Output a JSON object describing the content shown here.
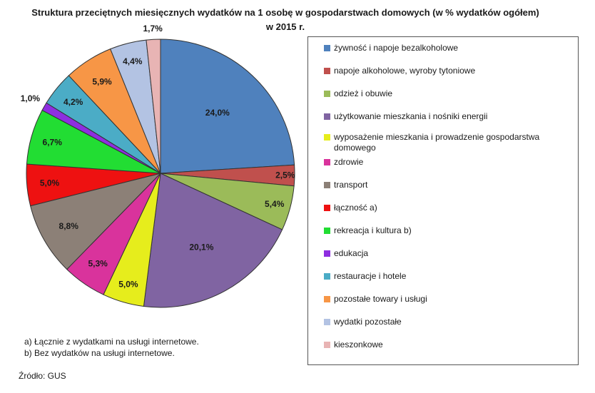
{
  "chart_data": {
    "type": "pie",
    "title": "Struktura przeciętnych miesięcznych wydatków na 1 osobę w gospodarstwach domowych (w % wydatków ogółem) w 2015 r.",
    "start": "12 o'clock, clockwise",
    "slices": [
      {
        "label": "żywność i napoje bezalkoholowe",
        "value": 24.0,
        "display": "24,0%",
        "color": "#4f81bd"
      },
      {
        "label": "napoje alkoholowe, wyroby tytoniowe",
        "value": 2.5,
        "display": "2,5%",
        "color": "#c0504d"
      },
      {
        "label": "odzież i obuwie",
        "value": 5.4,
        "display": "5,4%",
        "color": "#9bbb59"
      },
      {
        "label": "użytkowanie mieszkania i nośniki energii",
        "value": 20.1,
        "display": "20,1%",
        "color": "#8064a2"
      },
      {
        "label": "wyposażenie mieszkania i prowadzenie gospodarstwa domowego",
        "value": 5.0,
        "display": "5,0%",
        "color": "#e6ed1c"
      },
      {
        "label": "zdrowie",
        "value": 5.3,
        "display": "5,3%",
        "color": "#d9339c"
      },
      {
        "label": "transport",
        "value": 8.8,
        "display": "8,8%",
        "color": "#8c8077"
      },
      {
        "label": "łączność a)",
        "value": 5.0,
        "display": "5,0%",
        "color": "#ee1111"
      },
      {
        "label": "rekreacja i kultura b)",
        "value": 6.7,
        "display": "6,7%",
        "color": "#22dd33"
      },
      {
        "label": "edukacja",
        "value": 1.0,
        "display": "1,0%",
        "color": "#8e2ee0"
      },
      {
        "label": "restauracje i hotele",
        "value": 4.2,
        "display": "4,2%",
        "color": "#4bacc6"
      },
      {
        "label": "pozostałe towary i usługi",
        "value": 5.9,
        "display": "5,9%",
        "color": "#f79646"
      },
      {
        "label": "wydatki pozostałe",
        "value": 4.4,
        "display": "4,4%",
        "color": "#b3c3e3"
      },
      {
        "label": "kieszonkowe",
        "value": 1.7,
        "display": "1,7%",
        "color": "#e8b4b4"
      }
    ],
    "legend_placement": "right"
  },
  "footnotes": {
    "a": "a) Łącznie z wydatkami na usługi internetowe.",
    "b": "b) Bez wydatków na usługi internetowe."
  },
  "source": "Źródło: GUS"
}
